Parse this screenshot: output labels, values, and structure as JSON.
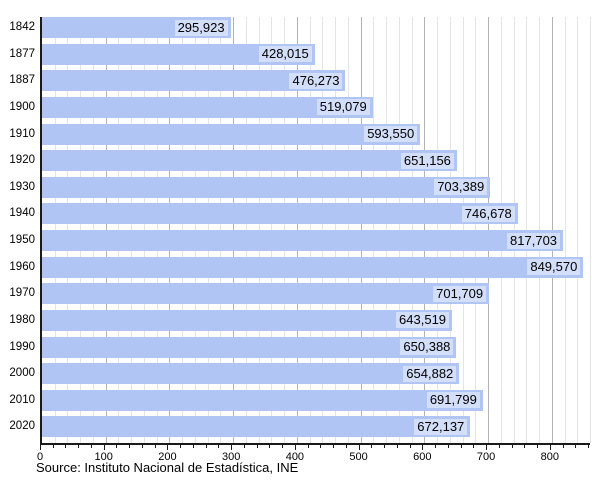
{
  "chart_data": {
    "type": "bar",
    "orientation": "horizontal",
    "title": "",
    "xlabel": "",
    "ylabel": "",
    "categories": [
      "1842",
      "1877",
      "1887",
      "1900",
      "1910",
      "1920",
      "1930",
      "1940",
      "1950",
      "1960",
      "1970",
      "1980",
      "1990",
      "2000",
      "2010",
      "2020"
    ],
    "values": [
      295923,
      428015,
      476273,
      519079,
      593550,
      651156,
      703389,
      746678,
      817703,
      849570,
      701709,
      643519,
      650388,
      654882,
      691799,
      672137
    ],
    "value_labels": [
      "295,923",
      "428,015",
      "476,273",
      "519,079",
      "593,550",
      "651,156",
      "703,389",
      "746,678",
      "817,703",
      "849,570",
      "701,709",
      "643,519",
      "650,388",
      "654,882",
      "691,799",
      "672,137"
    ],
    "x_axis": {
      "tick_labels": [
        "0",
        "100",
        "200",
        "300",
        "400",
        "500",
        "600",
        "700",
        "800"
      ],
      "major_tick_values": [
        0,
        100,
        200,
        300,
        400,
        500,
        600,
        700,
        800
      ],
      "minor_tick_step": 20,
      "axis_max": 860,
      "scale_note": "thousands"
    },
    "grid": "vertical, minor every 20 and major every 100",
    "legend": "none",
    "source": "Source: Instituto Nacional de Estadística, INE",
    "colors": {
      "bar": "#b0c5f3",
      "grid_major": "#b3b3b3",
      "grid_minor": "#e4e4e4",
      "axis": "#1a1a1a",
      "text": "#000000",
      "value_label_bg": "rgba(255,255,255,0.45)"
    }
  }
}
